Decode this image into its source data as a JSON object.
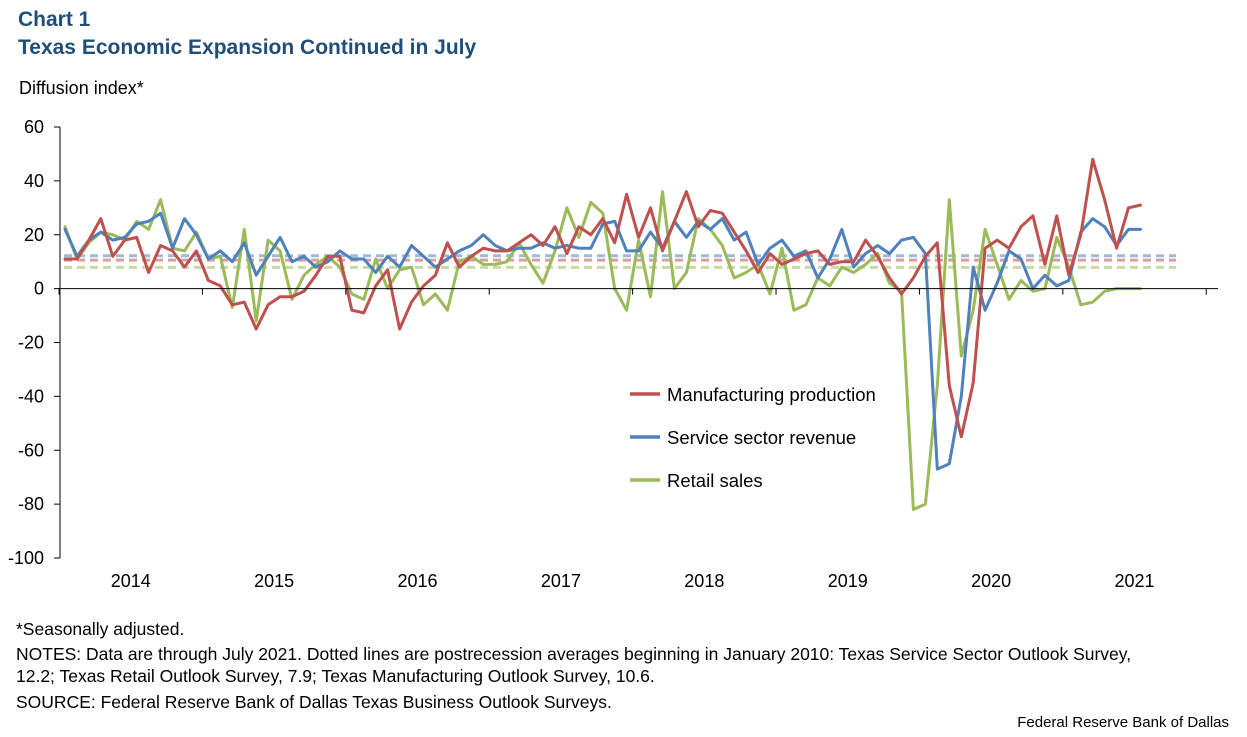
{
  "header": {
    "chart_label": "Chart 1",
    "title": "Texas Economic Expansion Continued in July",
    "y_unit": "Diffusion index*"
  },
  "footer": {
    "footnote": "*Seasonally adjusted.",
    "notes": "NOTES: Data are through July 2021. Dotted lines are postrecession averages beginning in January 2010: Texas Service Sector Outlook Survey, 12.2; Texas Retail Outlook Survey, 7.9; Texas Manufacturing Outlook Survey, 10.6.",
    "source": "SOURCE: Federal Reserve Bank of Dallas Texas Business Outlook Surveys.",
    "credit": "Federal Reserve Bank of Dallas"
  },
  "chart_data": {
    "type": "line",
    "title": "Texas Economic Expansion Continued in July",
    "ylabel": "Diffusion index*",
    "xlabel": "",
    "ylim": [
      -100,
      60
    ],
    "yticks": [
      60,
      40,
      20,
      0,
      -20,
      -40,
      -60,
      -80,
      -100
    ],
    "x_range": [
      "2014-01",
      "2021-07"
    ],
    "x_tick_labels": [
      "2014",
      "2015",
      "2016",
      "2017",
      "2018",
      "2019",
      "2020",
      "2021"
    ],
    "legend_position": "center-right",
    "series": [
      {
        "name": "Manufacturing production",
        "color": "#c0504d",
        "average": 10.6,
        "values": [
          11,
          11,
          18,
          26,
          12,
          18,
          19,
          6,
          16,
          14,
          8,
          14,
          3,
          1,
          -6,
          -5,
          -15,
          -6,
          -3,
          -3,
          -1,
          5,
          12,
          12,
          -8,
          -9,
          1,
          7,
          -15,
          -5,
          1,
          5,
          17,
          8,
          12,
          15,
          14,
          14,
          17,
          20,
          16,
          23,
          13,
          23,
          20,
          26,
          17,
          35,
          19,
          30,
          14,
          25,
          36,
          23,
          29,
          28,
          21,
          14,
          6,
          13,
          9,
          11,
          13,
          14,
          9,
          10,
          10,
          18,
          12,
          4,
          -2,
          4,
          12,
          17,
          -36,
          -55,
          -35,
          15,
          18,
          15,
          23,
          27,
          9,
          27,
          5,
          20,
          48,
          33,
          15,
          30,
          31
        ]
      },
      {
        "name": "Service sector revenue",
        "color": "#4f81bd",
        "average": 12.2,
        "values": [
          22,
          12,
          18,
          21,
          18,
          19,
          24,
          25,
          28,
          15,
          26,
          20,
          11,
          14,
          10,
          17,
          5,
          12,
          19,
          10,
          12,
          8,
          10,
          14,
          11,
          11,
          6,
          12,
          8,
          16,
          12,
          8,
          11,
          14,
          16,
          20,
          16,
          14,
          15,
          15,
          17,
          15,
          16,
          15,
          15,
          24,
          25,
          14,
          14,
          21,
          15,
          25,
          19,
          25,
          22,
          26,
          18,
          21,
          9,
          15,
          18,
          12,
          14,
          4,
          11,
          22,
          8,
          13,
          16,
          13,
          18,
          19,
          13,
          -67,
          -65,
          -40,
          8,
          -8,
          2,
          14,
          11,
          0,
          5,
          1,
          3,
          21,
          26,
          23,
          16,
          22,
          22
        ]
      },
      {
        "name": "Retail sales",
        "color": "#9bbb59",
        "average": 7.9,
        "values": [
          23,
          11,
          17,
          21,
          20,
          18,
          25,
          22,
          33,
          15,
          14,
          21,
          11,
          12,
          -7,
          22,
          -12,
          18,
          14,
          -4,
          5,
          9,
          12,
          8,
          -2,
          -4,
          11,
          0,
          7,
          8,
          -6,
          -2,
          -8,
          10,
          12,
          9,
          9,
          10,
          17,
          9,
          2,
          14,
          30,
          19,
          32,
          28,
          0,
          -8,
          18,
          -3,
          36,
          0,
          6,
          26,
          22,
          16,
          4,
          6,
          9,
          -2,
          15,
          -8,
          -6,
          4,
          1,
          8,
          6,
          9,
          13,
          2,
          -1,
          -82,
          -80,
          -36,
          33,
          -25,
          -8,
          22,
          9,
          -4,
          3,
          -1,
          0,
          19,
          8,
          -6,
          -5,
          -1,
          0,
          0,
          0
        ]
      }
    ]
  }
}
